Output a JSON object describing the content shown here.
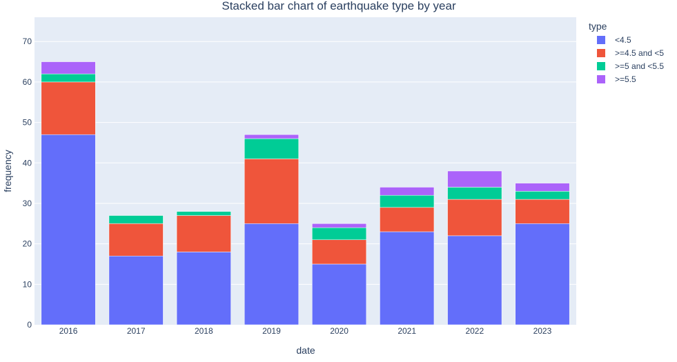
{
  "chart_data": {
    "type": "bar",
    "stacked": true,
    "title": "Stacked bar chart of earthquake type by year",
    "xlabel": "date",
    "ylabel": "frequency",
    "ylim": [
      0,
      76
    ],
    "yticks": [
      0,
      10,
      20,
      30,
      40,
      50,
      60,
      70
    ],
    "grid": true,
    "legend_title": "type",
    "legend_position": "right",
    "categories": [
      "2016",
      "2017",
      "2018",
      "2019",
      "2020",
      "2021",
      "2022",
      "2023"
    ],
    "series": [
      {
        "name": "<4.5",
        "color": "#636efa",
        "values": [
          47,
          17,
          18,
          25,
          15,
          23,
          22,
          25
        ]
      },
      {
        "name": ">=4.5 and <5",
        "color": "#ef553b",
        "values": [
          13,
          8,
          9,
          16,
          6,
          6,
          9,
          6
        ]
      },
      {
        "name": ">=5 and <5.5",
        "color": "#00cc96",
        "values": [
          2,
          2,
          1,
          5,
          3,
          3,
          3,
          2
        ]
      },
      {
        "name": ">=5.5",
        "color": "#ab63fa",
        "values": [
          3,
          0,
          0,
          1,
          1,
          2,
          4,
          2
        ]
      }
    ]
  }
}
